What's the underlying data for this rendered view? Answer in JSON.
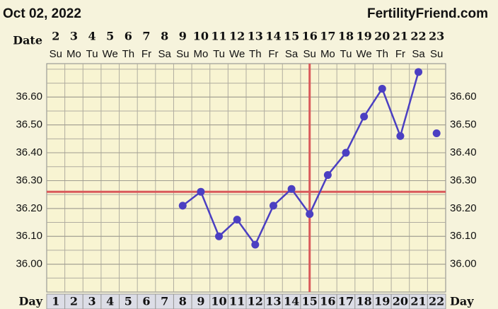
{
  "chart_data": {
    "type": "line",
    "title": "Oct 02, 2022",
    "source": "FertilityFriend.com",
    "date_label": "Date",
    "day_label": "Day",
    "dates": [
      2,
      3,
      4,
      5,
      6,
      7,
      8,
      9,
      10,
      11,
      12,
      13,
      14,
      15,
      16,
      17,
      18,
      19,
      20,
      21,
      22,
      23
    ],
    "weekdays": [
      "Su",
      "Mo",
      "Tu",
      "We",
      "Th",
      "Fr",
      "Sa",
      "Su",
      "Mo",
      "Tu",
      "We",
      "Th",
      "Fr",
      "Sa",
      "Su",
      "Mo",
      "Tu",
      "We",
      "Th",
      "Fr",
      "Sa",
      "Su"
    ],
    "categories": [
      1,
      2,
      3,
      4,
      5,
      6,
      7,
      8,
      9,
      10,
      11,
      12,
      13,
      14,
      15,
      16,
      17,
      18,
      19,
      20,
      21,
      22
    ],
    "series": [
      {
        "color": "#4b3fc2",
        "values": [
          null,
          null,
          null,
          null,
          null,
          null,
          null,
          36.21,
          36.26,
          36.1,
          36.16,
          36.07,
          36.21,
          36.27,
          36.18,
          36.32,
          36.4,
          36.53,
          36.63,
          36.46,
          36.69,
          null
        ],
        "connected": true
      },
      {
        "color": "#4b3fc2",
        "values": [
          null,
          null,
          null,
          null,
          null,
          null,
          null,
          null,
          null,
          null,
          null,
          null,
          null,
          null,
          null,
          null,
          null,
          null,
          null,
          null,
          null,
          36.47
        ],
        "connected": false
      }
    ],
    "ylim": [
      35.9,
      36.72
    ],
    "yticks": [
      {
        "value": 36.0,
        "label": "36.00"
      },
      {
        "value": 36.1,
        "label": "36.10"
      },
      {
        "value": 36.2,
        "label": "36.20"
      },
      {
        "value": 36.3,
        "label": "36.30"
      },
      {
        "value": 36.4,
        "label": "36.40"
      },
      {
        "value": 36.5,
        "label": "36.50"
      },
      {
        "value": 36.6,
        "label": "36.60"
      }
    ],
    "coverline": 36.26,
    "ovulation_day": 15,
    "marker_color": "#d9595b"
  }
}
